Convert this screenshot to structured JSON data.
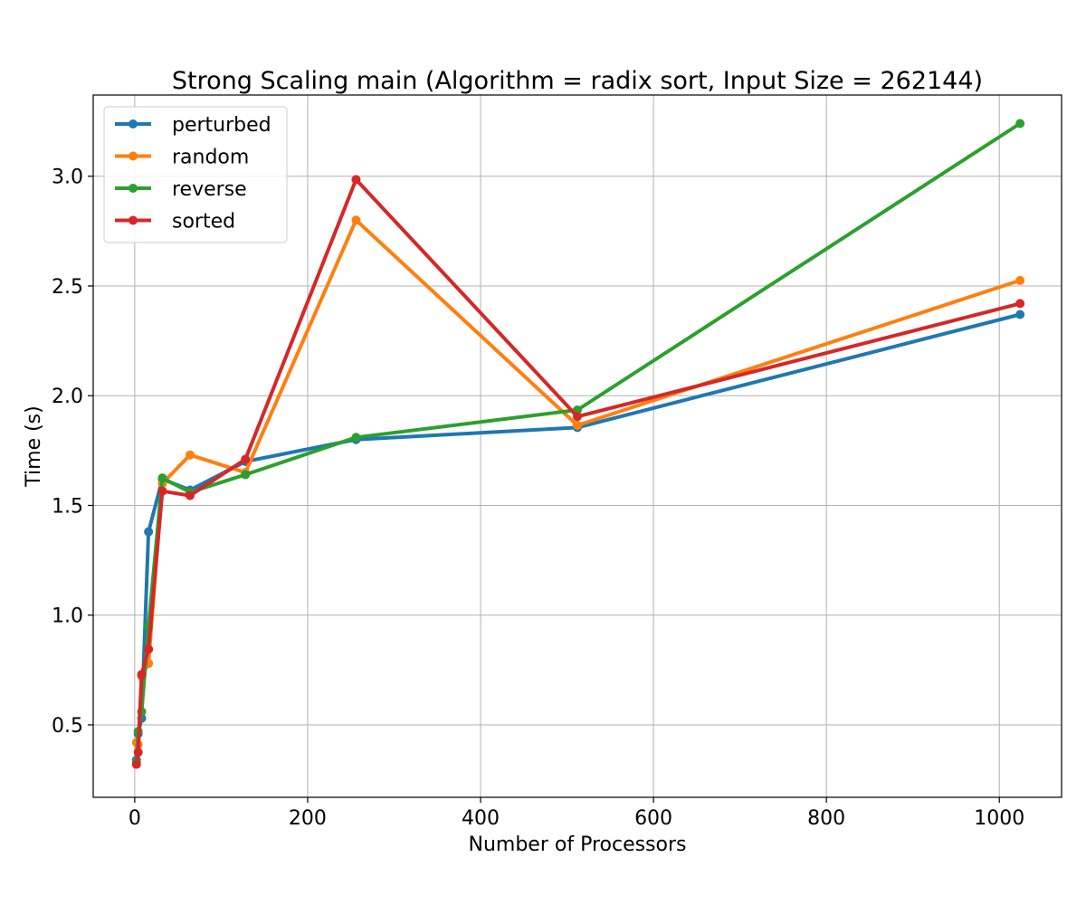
{
  "chart_data": {
    "type": "line",
    "title": "Strong Scaling main (Algorithm = radix sort, Input Size = 262144)",
    "xlabel": "Number of Processors",
    "ylabel": "Time (s)",
    "xlim": [
      -48,
      1072
    ],
    "ylim": [
      0.17,
      3.37
    ],
    "xticks": [
      0,
      200,
      400,
      600,
      800,
      1000
    ],
    "yticks": [
      0.5,
      1.0,
      1.5,
      2.0,
      2.5,
      3.0
    ],
    "xtick_labels": [
      "0",
      "200",
      "400",
      "600",
      "800",
      "1000"
    ],
    "ytick_labels": [
      "0.5",
      "1.0",
      "1.5",
      "2.0",
      "2.5",
      "3.0"
    ],
    "grid": true,
    "legend_position": "top-left",
    "x": [
      2,
      4,
      8,
      16,
      32,
      64,
      128,
      256,
      512,
      1024
    ],
    "series": [
      {
        "name": "perturbed",
        "color": "#1f77b4",
        "values": [
          0.34,
          0.46,
          0.53,
          1.38,
          1.62,
          1.57,
          1.7,
          1.8,
          1.855,
          2.37
        ]
      },
      {
        "name": "random",
        "color": "#ff7f0e",
        "values": [
          0.42,
          0.41,
          0.72,
          0.78,
          1.6,
          1.73,
          1.65,
          2.8,
          1.865,
          2.525
        ]
      },
      {
        "name": "reverse",
        "color": "#2ca02c",
        "values": [
          0.33,
          0.47,
          0.56,
          0.95,
          1.625,
          1.56,
          1.64,
          1.81,
          1.935,
          3.24
        ]
      },
      {
        "name": "sorted",
        "color": "#d62728",
        "values": [
          0.32,
          0.375,
          0.73,
          0.845,
          1.565,
          1.545,
          1.71,
          2.985,
          1.905,
          2.42
        ]
      }
    ]
  }
}
